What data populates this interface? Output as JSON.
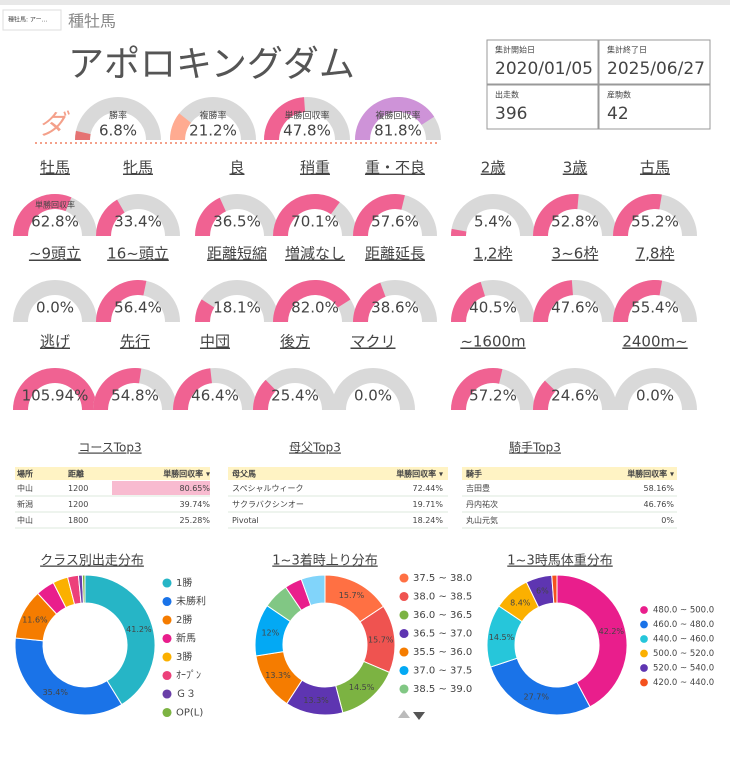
{
  "header": {
    "selector": "種牡馬: アー…",
    "label": "種牡馬",
    "name": "アポロキングダム"
  },
  "stats": [
    {
      "label": "集計開始日",
      "value": "2020/01/05"
    },
    {
      "label": "集計終了日",
      "value": "2025/06/27"
    },
    {
      "label": "出走数",
      "value": "396"
    },
    {
      "label": "産駒数",
      "value": "42"
    }
  ],
  "surface": "ダ",
  "summary_gauges": {
    "range": [
      0,
      100
    ],
    "items": [
      {
        "name": "勝率",
        "value": 6.8,
        "value_label": "6.8%",
        "color": "#e57373"
      },
      {
        "name": "複勝率",
        "value": 21.2,
        "value_label": "21.2%",
        "color": "#ffab91"
      },
      {
        "name": "単勝回収率",
        "value": 47.8,
        "value_label": "47.8%",
        "color": "#f06292"
      },
      {
        "name": "複勝回収率",
        "value": 81.8,
        "value_label": "81.8%",
        "color": "#ce93d8"
      }
    ]
  },
  "gauge_rows": {
    "range": [
      0,
      100
    ],
    "color": "#f06292",
    "metric_label": "単勝回収率",
    "rows": [
      {
        "groups": [
          [
            {
              "label": "牡馬",
              "value": 62.8,
              "value_label": "62.8%"
            },
            {
              "label": "牝馬",
              "value": 33.4,
              "value_label": "33.4%"
            }
          ],
          [
            {
              "label": "良",
              "value": 36.5,
              "value_label": "36.5%"
            },
            {
              "label": "稍重",
              "value": 70.1,
              "value_label": "70.1%"
            },
            {
              "label": "重・不良",
              "value": 57.6,
              "value_label": "57.6%"
            }
          ],
          [
            {
              "label": "2歳",
              "value": 5.4,
              "value_label": "5.4%"
            },
            {
              "label": "3歳",
              "value": 52.8,
              "value_label": "52.8%"
            },
            {
              "label": "古馬",
              "value": 55.2,
              "value_label": "55.2%"
            }
          ]
        ]
      },
      {
        "groups": [
          [
            {
              "label": "~9頭立",
              "value": 0.0,
              "value_label": "0.0%"
            },
            {
              "label": "16~頭立",
              "value": 56.4,
              "value_label": "56.4%"
            }
          ],
          [
            {
              "label": "距離短縮",
              "value": 18.1,
              "value_label": "18.1%"
            },
            {
              "label": "増減なし",
              "value": 82.0,
              "value_label": "82.0%"
            },
            {
              "label": "距離延長",
              "value": 38.6,
              "value_label": "38.6%"
            }
          ],
          [
            {
              "label": "1,2枠",
              "value": 40.5,
              "value_label": "40.5%"
            },
            {
              "label": "3~6枠",
              "value": 47.6,
              "value_label": "47.6%"
            },
            {
              "label": "7,8枠",
              "value": 55.4,
              "value_label": "55.4%"
            }
          ]
        ]
      },
      {
        "groups": [
          [
            {
              "label": "逃げ",
              "value": 105.94,
              "value_label": "105.94%"
            },
            {
              "label": "先行",
              "value": 54.8,
              "value_label": "54.8%"
            },
            {
              "label": "中団",
              "value": 46.4,
              "value_label": "46.4%"
            },
            {
              "label": "後方",
              "value": 25.4,
              "value_label": "25.4%"
            },
            {
              "label": "マクリ",
              "value": 0.0,
              "value_label": "0.0%"
            }
          ],
          [
            {
              "label": "~1600m",
              "value": 57.2,
              "value_label": "57.2%"
            },
            {
              "label": null,
              "value": 24.6,
              "value_label": "24.6%"
            },
            {
              "label": "2400m~",
              "value": 0.0,
              "value_label": "0.0%"
            }
          ]
        ]
      }
    ]
  },
  "tables": [
    {
      "title": "コースTop3",
      "columns": [
        "場所",
        "距離",
        "単勝回収率 ▾"
      ],
      "rows": [
        [
          "中山",
          "1200",
          "80.65%"
        ],
        [
          "新潟",
          "1200",
          "39.74%"
        ],
        [
          "中山",
          "1800",
          "25.28%"
        ]
      ]
    },
    {
      "title": "母父Top3",
      "columns": [
        "母父馬",
        "単勝回収率 ▾"
      ],
      "rows": [
        [
          "スペシャルウィーク",
          "72.44%"
        ],
        [
          "サクラバクシンオー",
          "19.71%"
        ],
        [
          "Pivotal",
          "18.24%"
        ]
      ]
    },
    {
      "title": "騎手Top3",
      "columns": [
        "騎手",
        "単勝回収率 ▾"
      ],
      "rows": [
        [
          "吉田豊",
          "58.16%"
        ],
        [
          "丹内祐次",
          "46.76%"
        ],
        [
          "丸山元気",
          "0%"
        ]
      ]
    }
  ],
  "donuts": [
    {
      "type": "pie",
      "title": "クラス別出走分布",
      "categories": [
        "1勝",
        "未勝利",
        "2勝",
        "新馬",
        "3勝",
        "ｵｰﾌﾟﾝ",
        "Ｇ３",
        "OP(L)"
      ],
      "values": [
        41.2,
        35.4,
        11.6,
        4.3,
        3.5,
        2.5,
        0.9,
        0.6
      ],
      "value_labels": [
        "41.2%",
        "35.4%",
        "11.6%",
        null,
        null,
        null,
        null,
        null
      ],
      "colors": [
        "#26b5c6",
        "#1a73e8",
        "#f57c00",
        "#e91e8c",
        "#fbb000",
        "#ec407a",
        "#6a3fa8",
        "#7cb342"
      ]
    },
    {
      "type": "pie",
      "title": "1~3着時上り分布",
      "categories": [
        "37.5 ~ 38.0",
        "38.0 ~ 38.5",
        "36.0 ~ 36.5",
        "36.5 ~ 37.0",
        "35.5 ~ 36.0",
        "37.0 ~ 37.5",
        "38.5 ~ 39.0",
        null,
        null
      ],
      "values": [
        15.7,
        15.7,
        14.5,
        13.3,
        13.3,
        12,
        6,
        4,
        5.5
      ],
      "value_labels": [
        "15.7%",
        "15.7%",
        "14.5%",
        "13.3%",
        "13.3%",
        "12%",
        null,
        null,
        null
      ],
      "colors": [
        "#ff7043",
        "#ef5350",
        "#7cb342",
        "#5e35b1",
        "#f57c00",
        "#03a9f4",
        "#81c784",
        "#e91e8c",
        "#81d4fa"
      ]
    },
    {
      "type": "pie",
      "title": "1~3時馬体重分布",
      "categories": [
        "480.0 ~ 500.0",
        "460.0 ~ 480.0",
        "440.0 ~ 460.0",
        "500.0 ~ 520.0",
        "520.0 ~ 540.0",
        "420.0 ~ 440.0"
      ],
      "values": [
        42.2,
        27.7,
        14.5,
        8.4,
        6,
        1.2
      ],
      "value_labels": [
        "42.2%",
        "27.7%",
        "14.5%",
        "8.4%",
        "6%",
        null
      ],
      "colors": [
        "#e91e8c",
        "#1a73e8",
        "#26c6da",
        "#fbb000",
        "#5e35b1",
        "#f4511e"
      ]
    }
  ]
}
